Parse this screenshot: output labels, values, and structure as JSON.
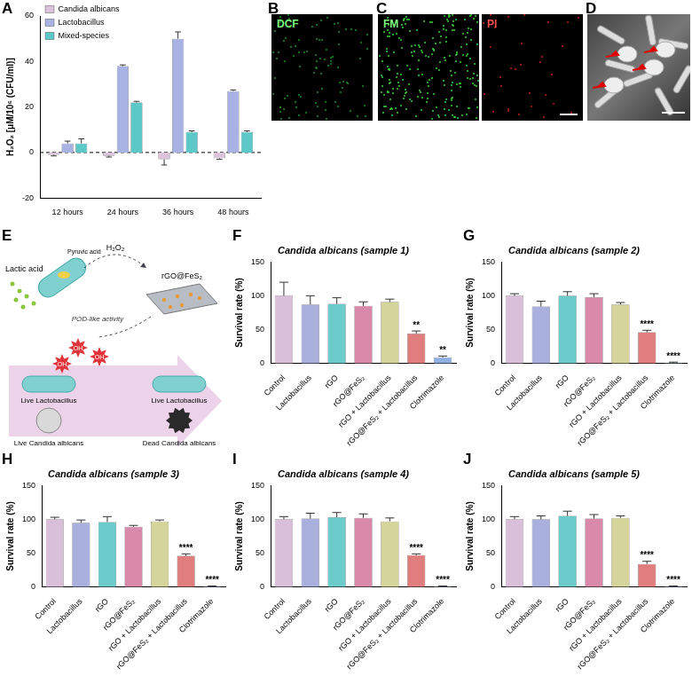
{
  "chart_data": [
    {
      "panel": "A",
      "type": "bar",
      "categories": [
        "12 hours",
        "24 hours",
        "36 hours",
        "48 hours"
      ],
      "series": [
        {
          "name": "Candida albicans",
          "color": "#dcc3dc",
          "values": [
            -1,
            -1.5,
            -3,
            -2.5
          ],
          "errors": [
            0.5,
            0.5,
            2.5,
            0.5
          ]
        },
        {
          "name": "Lactobacillus",
          "color": "#a9b3e3",
          "values": [
            4,
            38,
            50,
            27
          ],
          "errors": [
            1,
            0.5,
            3,
            0.5
          ]
        },
        {
          "name": "Mixed-species",
          "color": "#5cc8c8",
          "values": [
            4,
            22,
            9,
            9
          ],
          "errors": [
            2,
            0.5,
            0.5,
            0.5
          ]
        }
      ],
      "ylabel": "H₂O₂ [μM/10⁶ (CFU/ml)]",
      "ylim": [
        -20,
        60
      ],
      "yticks": [
        -20,
        0,
        20,
        40,
        60
      ],
      "grid": false,
      "legend": "top-left",
      "reference_lines": [
        {
          "value": 0,
          "line_style": "dashed"
        }
      ]
    },
    {
      "panel": "F",
      "type": "bar",
      "title": "Candida albicans (sample 1)",
      "categories": [
        "Control",
        "Lactobacillus",
        "rGO",
        "rGO@FeS₂",
        "rGO + Lactobacillus",
        "rGO@FeS₂ + Lactobacillus",
        "Clotrimazole"
      ],
      "values": [
        100,
        87,
        88,
        85,
        91,
        44,
        9
      ],
      "errors": [
        20,
        13,
        9,
        6,
        4,
        4,
        2
      ],
      "significance": [
        null,
        null,
        null,
        null,
        null,
        "**",
        "**"
      ],
      "colors": [
        "#d9bfd9",
        "#aab0dd",
        "#6ccbcb",
        "#d98aab",
        "#d5d49a",
        "#e07e7e",
        "#8fb0e0"
      ],
      "ylabel": "Survival rate (%)",
      "ylim": [
        0,
        150
      ],
      "yticks": [
        0,
        50,
        100,
        150
      ],
      "grid": false
    },
    {
      "panel": "G",
      "type": "bar",
      "title": "Candida albicans (sample 2)",
      "categories": [
        "Control",
        "Lactobacillus",
        "rGO",
        "rGO@FeS₂",
        "rGO + Lactobacillus",
        "rGO@FeS₂ + Lactobacillus",
        "Clotrimazole"
      ],
      "values": [
        100,
        84,
        100,
        98,
        87,
        46,
        1
      ],
      "errors": [
        3,
        8,
        6,
        5,
        3,
        3,
        1
      ],
      "significance": [
        null,
        null,
        null,
        null,
        null,
        "****",
        "****"
      ],
      "colors": [
        "#d9bfd9",
        "#aab0dd",
        "#6ccbcb",
        "#d98aab",
        "#d5d49a",
        "#e07e7e",
        "#8fb0e0"
      ],
      "ylabel": "Survival rate (%)",
      "ylim": [
        0,
        150
      ],
      "yticks": [
        0,
        50,
        100,
        150
      ],
      "grid": false
    },
    {
      "panel": "H",
      "type": "bar",
      "title": "Candida albicans (sample 3)",
      "categories": [
        "Control",
        "Lactobacillus",
        "rGO",
        "rGO@FeS₂",
        "rGO + Lactobacillus",
        "rGO@FeS₂ + Lactobacillus",
        "Clotrimazole"
      ],
      "values": [
        100,
        95,
        96,
        89,
        97,
        46,
        1
      ],
      "errors": [
        3,
        4,
        8,
        2,
        2,
        3,
        0.5
      ],
      "significance": [
        null,
        null,
        null,
        null,
        null,
        "****",
        "****"
      ],
      "colors": [
        "#d9bfd9",
        "#aab0dd",
        "#6ccbcb",
        "#d98aab",
        "#d5d49a",
        "#e07e7e",
        "#8fb0e0"
      ],
      "ylabel": "Survival rate (%)",
      "ylim": [
        0,
        150
      ],
      "yticks": [
        0,
        50,
        100,
        150
      ],
      "grid": false
    },
    {
      "panel": "I",
      "type": "bar",
      "title": "Candida albicans (sample 4)",
      "categories": [
        "Control",
        "Lactobacillus",
        "rGO",
        "rGO@FeS₂",
        "rGO + Lactobacillus",
        "rGO@FeS₂ + Lactobacillus",
        "Clotrimazole"
      ],
      "values": [
        100,
        101,
        103,
        102,
        97,
        47,
        1
      ],
      "errors": [
        4,
        8,
        7,
        6,
        5,
        2,
        0.5
      ],
      "significance": [
        null,
        null,
        null,
        null,
        null,
        "****",
        "****"
      ],
      "colors": [
        "#d9bfd9",
        "#aab0dd",
        "#6ccbcb",
        "#d98aab",
        "#d5d49a",
        "#e07e7e",
        "#8fb0e0"
      ],
      "ylabel": "Survival rate (%)",
      "ylim": [
        0,
        150
      ],
      "yticks": [
        0,
        50,
        100,
        150
      ],
      "grid": false
    },
    {
      "panel": "J",
      "type": "bar",
      "title": "Candida albicans (sample 5)",
      "categories": [
        "Control",
        "Lactobacillus",
        "rGO",
        "rGO@FeS₂",
        "rGO + Lactobacillus",
        "rGO@FeS₂ + Lactobacillus",
        "Clotrimazole"
      ],
      "values": [
        100,
        100,
        105,
        101,
        102,
        34,
        1
      ],
      "errors": [
        4,
        5,
        7,
        6,
        3,
        4,
        0.5
      ],
      "significance": [
        null,
        null,
        null,
        null,
        null,
        "****",
        "****"
      ],
      "colors": [
        "#d9bfd9",
        "#aab0dd",
        "#6ccbcb",
        "#d98aab",
        "#d5d49a",
        "#e07e7e",
        "#8fb0e0"
      ],
      "ylabel": "Survival rate (%)",
      "ylim": [
        0,
        150
      ],
      "yticks": [
        0,
        50,
        100,
        150
      ],
      "grid": false
    }
  ],
  "images": [
    {
      "panel": "B",
      "labels": [
        "DCF"
      ]
    },
    {
      "panel": "C",
      "labels": [
        "FM",
        "PI"
      ]
    },
    {
      "panel": "D"
    }
  ],
  "diagram": {
    "panel": "E",
    "labels": {
      "lactic_acid": "Lactic acid",
      "pyruvic_acid": "Pyruvic acid",
      "h2o2": "H₂O₂",
      "pod": "POD-like activity",
      "material": "rGO@FeS₂",
      "radical": "OH",
      "live_lacto": "Live Lactobacillus",
      "live_candida": "Live Candida albicans",
      "dead_candida": "Dead Candida albicans"
    }
  }
}
